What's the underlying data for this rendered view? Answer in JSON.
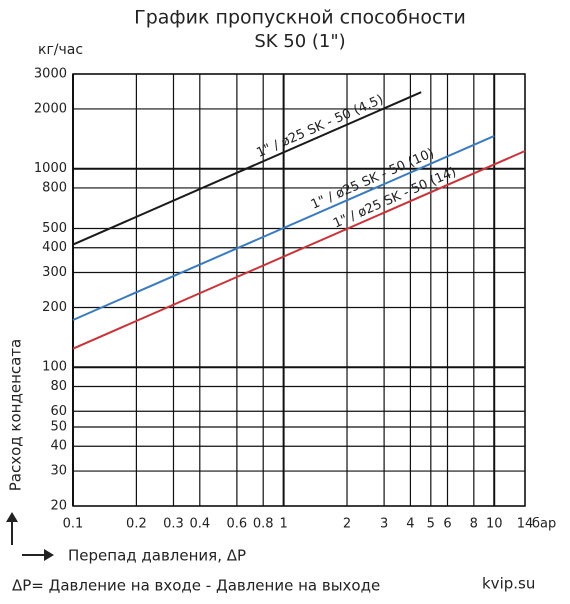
{
  "chart_data": {
    "type": "line",
    "title": "График пропускной способности",
    "subtitle": "SK 50 (1\")",
    "y_unit": "кг/час",
    "y_label": "Расход конденсата",
    "x_unit": "бар",
    "x_label": "Перепад давления, ΔP",
    "note": "ΔP= Давление на входе - Давление на выходе",
    "source": "kvip.su",
    "log_x": true,
    "log_y": true,
    "grid": true,
    "xlim": [
      0.1,
      14
    ],
    "ylim": [
      20,
      3000
    ],
    "xticks": [
      0.1,
      0.2,
      0.3,
      0.4,
      0.6,
      0.8,
      1,
      2,
      3,
      4,
      5,
      6,
      8,
      10,
      14
    ],
    "yticks": [
      20,
      30,
      40,
      50,
      60,
      80,
      100,
      200,
      300,
      400,
      500,
      800,
      1000,
      2000,
      3000
    ],
    "series": [
      {
        "name": "1\" / ø25 SK - 50 (4.5)",
        "color": "#1a1a1a",
        "x": [
          0.1,
          4.5
        ],
        "values": [
          415,
          2430
        ]
      },
      {
        "name": "1\" / ø25 SK - 50 (10)",
        "color": "#3a7bbf",
        "x": [
          0.1,
          10
        ],
        "values": [
          173,
          1462
        ]
      },
      {
        "name": "1\" / ø25 SK - 50 (14)",
        "color": "#c8343a",
        "x": [
          0.1,
          14
        ],
        "values": [
          124,
          1228
        ]
      }
    ]
  }
}
